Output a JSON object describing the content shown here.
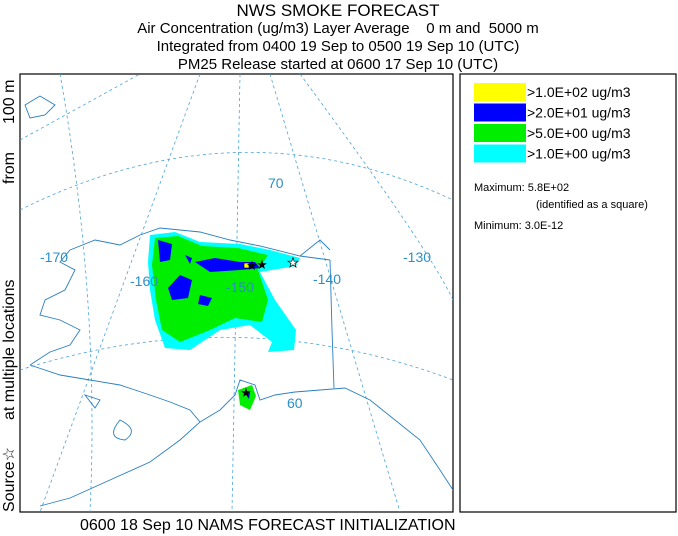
{
  "header": {
    "title": "NWS SMOKE FORECAST",
    "lines": [
      "Air Concentration (ug/m3) Layer Average    0 m and  5000 m",
      "Integrated from 0400 19 Sep to 0500 19 Sep 10 (UTC)",
      "PM25 Release started at 0600 17 Sep 10 (UTC)"
    ]
  },
  "side_label": [
    "Source☆",
    "at multiple locations",
    "from",
    "100 m"
  ],
  "map": {
    "labels": [
      "-170",
      "-160",
      "-150",
      "-140",
      "-130",
      "70",
      "60"
    ]
  },
  "legend": {
    "entries": [
      {
        "label": ">1.0E+02 ug/m3",
        "color": "#ffff00"
      },
      {
        "label": ">2.0E+01 ug/m3",
        "color": "#0000ff"
      },
      {
        "label": ">5.0E+00 ug/m3",
        "color": "#00ee00"
      },
      {
        "label": ">1.0E+00 ug/m3",
        "color": "#00ffff"
      }
    ],
    "maximum": "Maximum: 5.8E+02",
    "maximum_note": "(identified as a square)",
    "minimum": "Minimum: 3.0E-12"
  },
  "footer": "0600 18 Sep 10 NAMS FORECAST INITIALIZATION"
}
